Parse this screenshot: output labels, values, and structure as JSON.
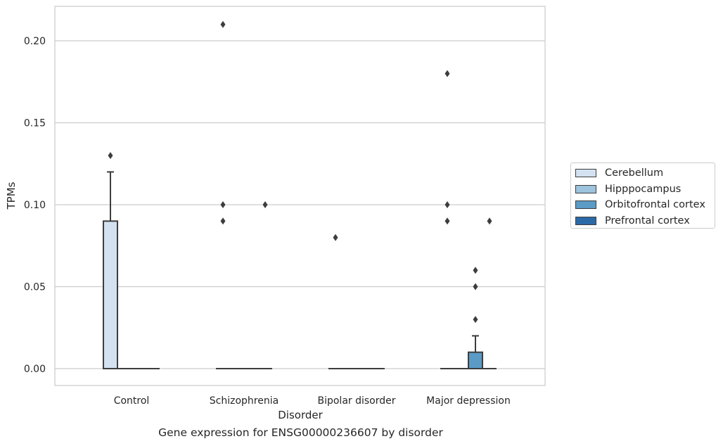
{
  "chart_data": {
    "type": "box",
    "title": "Gene expression for ENSG00000236607 by disorder",
    "xlabel": "Disorder",
    "ylabel": "TPMs",
    "ylim": [
      -0.01,
      0.22
    ],
    "yticks": [
      "0.00",
      "0.05",
      "0.10",
      "0.15",
      "0.20"
    ],
    "grid": "horizontal",
    "legend_position": "right",
    "categories": [
      "Control",
      "Schizophrenia",
      "Bipolar disorder",
      "Major depression"
    ],
    "series": [
      {
        "name": "Cerebellum",
        "color": "#d3e1f0",
        "boxes": [
          {
            "q1": 0.0,
            "median": 0.0,
            "q3": 0.09,
            "whisker_low": 0.0,
            "whisker_high": 0.12,
            "outliers": [
              0.13
            ]
          },
          {
            "q1": 0.0,
            "median": 0.0,
            "q3": 0.0,
            "whisker_low": 0.0,
            "whisker_high": 0.0,
            "outliers": [
              0.09,
              0.1,
              0.21
            ]
          },
          {
            "q1": 0.0,
            "median": 0.0,
            "q3": 0.0,
            "whisker_low": 0.0,
            "whisker_high": 0.0,
            "outliers": [
              0.08
            ]
          },
          {
            "q1": 0.0,
            "median": 0.0,
            "q3": 0.0,
            "whisker_low": 0.0,
            "whisker_high": 0.0,
            "outliers": [
              0.09,
              0.1,
              0.18
            ]
          }
        ]
      },
      {
        "name": "Hipppocampus",
        "color": "#9dc3dd",
        "boxes": [
          {
            "q1": 0.0,
            "median": 0.0,
            "q3": 0.0,
            "whisker_low": 0.0,
            "whisker_high": 0.0,
            "outliers": []
          },
          {
            "q1": 0.0,
            "median": 0.0,
            "q3": 0.0,
            "whisker_low": 0.0,
            "whisker_high": 0.0,
            "outliers": []
          },
          {
            "q1": 0.0,
            "median": 0.0,
            "q3": 0.0,
            "whisker_low": 0.0,
            "whisker_high": 0.0,
            "outliers": []
          },
          {
            "q1": 0.0,
            "median": 0.0,
            "q3": 0.0,
            "whisker_low": 0.0,
            "whisker_high": 0.0,
            "outliers": []
          }
        ]
      },
      {
        "name": "Orbitofrontal cortex",
        "color": "#5b9bc6",
        "boxes": [
          {
            "q1": 0.0,
            "median": 0.0,
            "q3": 0.0,
            "whisker_low": 0.0,
            "whisker_high": 0.0,
            "outliers": []
          },
          {
            "q1": 0.0,
            "median": 0.0,
            "q3": 0.0,
            "whisker_low": 0.0,
            "whisker_high": 0.0,
            "outliers": []
          },
          {
            "q1": 0.0,
            "median": 0.0,
            "q3": 0.0,
            "whisker_low": 0.0,
            "whisker_high": 0.0,
            "outliers": []
          },
          {
            "q1": 0.0,
            "median": 0.0,
            "q3": 0.01,
            "whisker_low": 0.0,
            "whisker_high": 0.02,
            "outliers": [
              0.03,
              0.05,
              0.06
            ]
          }
        ]
      },
      {
        "name": "Prefrontal cortex",
        "color": "#2b6aa6",
        "boxes": [
          {
            "q1": 0.0,
            "median": 0.0,
            "q3": 0.0,
            "whisker_low": 0.0,
            "whisker_high": 0.0,
            "outliers": []
          },
          {
            "q1": 0.0,
            "median": 0.0,
            "q3": 0.0,
            "whisker_low": 0.0,
            "whisker_high": 0.0,
            "outliers": [
              0.1
            ]
          },
          {
            "q1": 0.0,
            "median": 0.0,
            "q3": 0.0,
            "whisker_low": 0.0,
            "whisker_high": 0.0,
            "outliers": []
          },
          {
            "q1": 0.0,
            "median": 0.0,
            "q3": 0.0,
            "whisker_low": 0.0,
            "whisker_high": 0.0,
            "outliers": [
              0.09
            ]
          }
        ]
      }
    ]
  }
}
